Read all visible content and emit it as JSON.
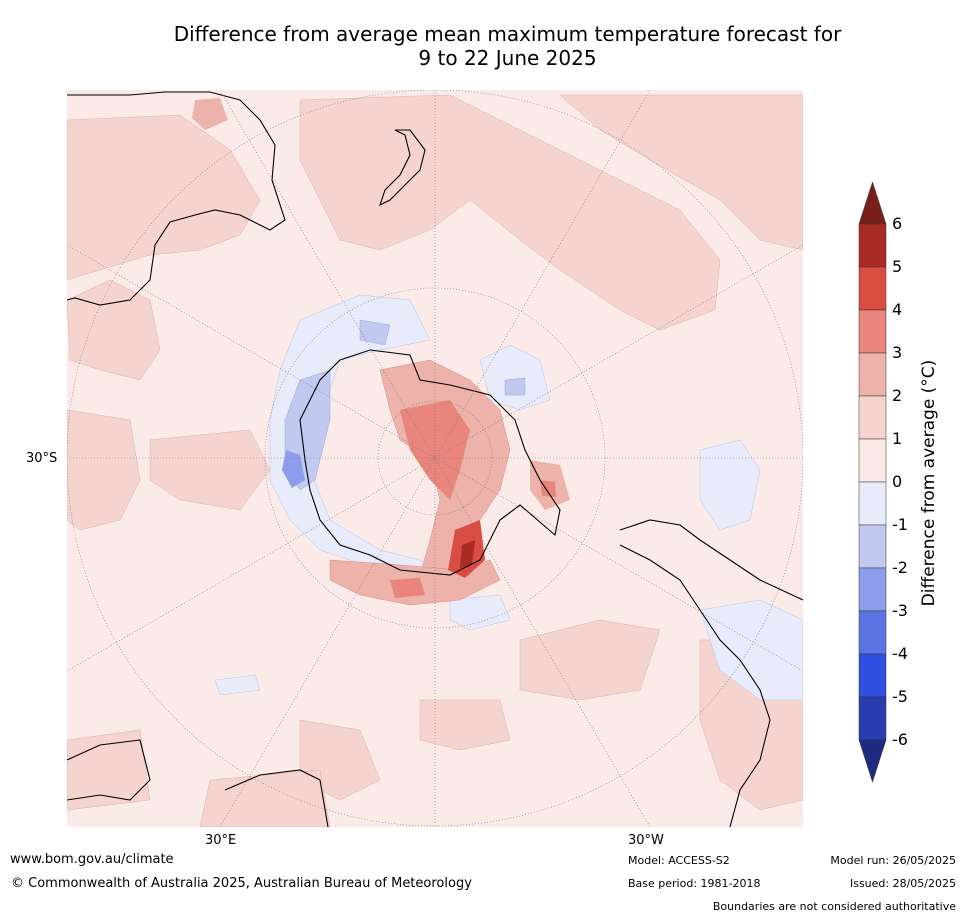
{
  "title": {
    "line1": "Difference from average mean maximum temperature forecast for",
    "line2": "9 to 22 June 2025"
  },
  "axis_labels": {
    "lat": "30°S",
    "lon_left": "30°E",
    "lon_right": "30°W"
  },
  "colorbar": {
    "title": "Difference from average (°C)",
    "ticks": [
      "6",
      "5",
      "4",
      "3",
      "2",
      "1",
      "0",
      "-1",
      "-2",
      "-3",
      "-4",
      "-5",
      "-6"
    ],
    "colors": [
      "#a82b25",
      "#d94d42",
      "#e8857d",
      "#edb2aa",
      "#f5d4cf",
      "#fbebe8",
      "#e8ecfa",
      "#c1c9f0",
      "#8d9deb",
      "#5c74e3",
      "#2f4fe0",
      "#2a3db0"
    ],
    "over_color": "#781f1a",
    "under_color": "#1f2b80"
  },
  "footer": {
    "website": "www.bom.gov.au/climate",
    "copyright": "© Commonwealth of Australia 2025, Australian Bureau of Meteorology",
    "model": "Model: ACCESS-S2",
    "base_period": "Base period: 1981-2018",
    "model_run": "Model run: 26/05/2025",
    "issued": "Issued: 28/05/2025",
    "disclaimer": "Boundaries are not considered authoritative"
  }
}
